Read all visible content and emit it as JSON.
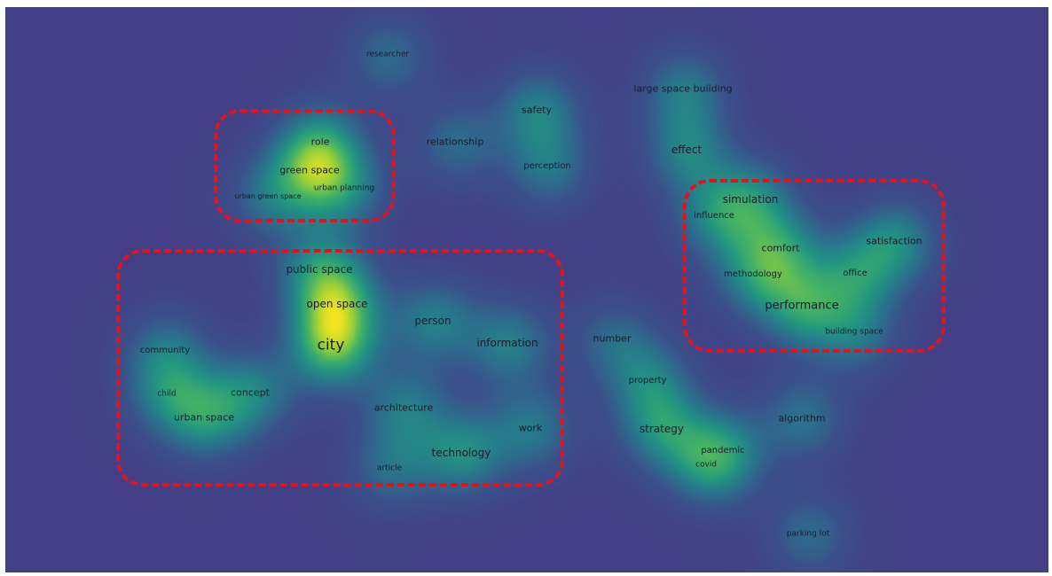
{
  "map": {
    "background": "#433f86",
    "frame_color": "#e0141e",
    "terms": [
      {
        "label": "researcher",
        "density": 0.45
      },
      {
        "label": "safety",
        "density": 0.6
      },
      {
        "label": "relationship",
        "density": 0.45
      },
      {
        "label": "perception",
        "density": 0.5
      },
      {
        "label": "large space building",
        "density": 0.55
      },
      {
        "label": "effect",
        "density": 0.6
      },
      {
        "label": "role",
        "density": 0.6
      },
      {
        "label": "green space",
        "density": 0.7
      },
      {
        "label": "urban planning",
        "density": 0.5
      },
      {
        "label": "urban green space",
        "density": 0.45
      },
      {
        "label": "simulation",
        "density": 0.6
      },
      {
        "label": "influence",
        "density": 0.55
      },
      {
        "label": "comfort",
        "density": 0.6
      },
      {
        "label": "satisfaction",
        "density": 0.65
      },
      {
        "label": "methodology",
        "density": 0.55
      },
      {
        "label": "office",
        "density": 0.6
      },
      {
        "label": "performance",
        "density": 0.75
      },
      {
        "label": "building space",
        "density": 0.5
      },
      {
        "label": "public space",
        "density": 0.65
      },
      {
        "label": "open space",
        "density": 0.8
      },
      {
        "label": "city",
        "density": 1.0
      },
      {
        "label": "person",
        "density": 0.6
      },
      {
        "label": "information",
        "density": 0.6
      },
      {
        "label": "number",
        "density": 0.4
      },
      {
        "label": "community",
        "density": 0.5
      },
      {
        "label": "child",
        "density": 0.5
      },
      {
        "label": "concept",
        "density": 0.6
      },
      {
        "label": "urban space",
        "density": 0.65
      },
      {
        "label": "architecture",
        "density": 0.55
      },
      {
        "label": "work",
        "density": 0.55
      },
      {
        "label": "technology",
        "density": 0.7
      },
      {
        "label": "article",
        "density": 0.45
      },
      {
        "label": "property",
        "density": 0.55
      },
      {
        "label": "strategy",
        "density": 0.65
      },
      {
        "label": "pandemic",
        "density": 0.55
      },
      {
        "label": "covid",
        "density": 0.5
      },
      {
        "label": "algorithm",
        "density": 0.5
      },
      {
        "label": "parking lot",
        "density": 0.45
      }
    ]
  }
}
